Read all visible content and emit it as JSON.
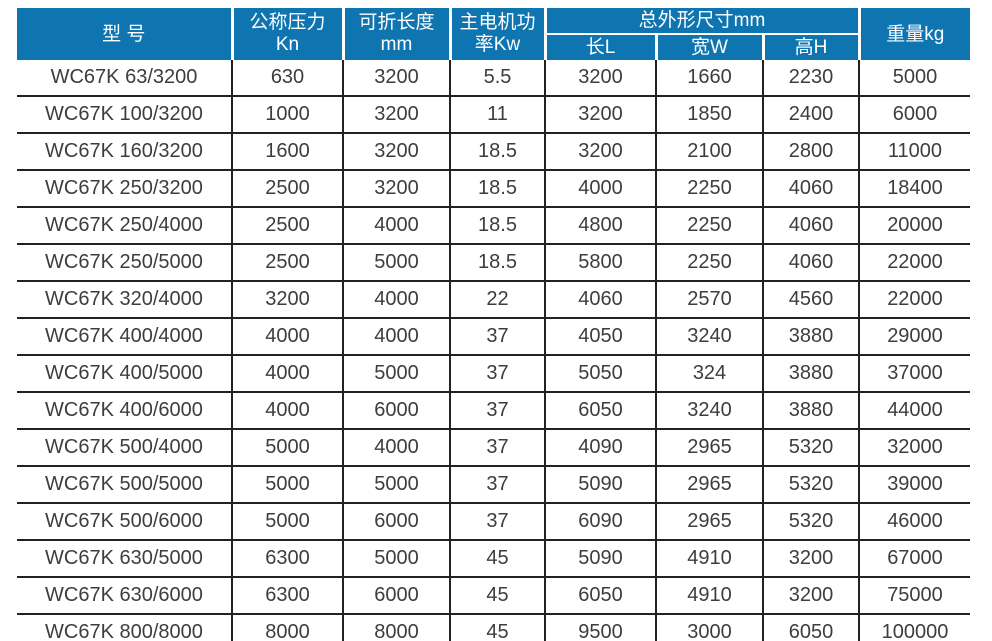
{
  "table": {
    "title": "WC67K series press brake specification table",
    "headers": {
      "model": "型 号",
      "pressure_line1": "公称压力",
      "pressure_line2": "Kn",
      "fold_length_line1": "可折长度",
      "fold_length_line2": "mm",
      "motor_power_line1": "主电机功",
      "motor_power_line2": "率Kw",
      "overall_dimensions": "总外形尺寸mm",
      "dim_length": "长L",
      "dim_width": "宽W",
      "dim_height": "高H",
      "weight": "重量kg"
    },
    "rows": [
      [
        "WC67K 63/3200",
        "630",
        "3200",
        "5.5",
        "3200",
        "1660",
        "2230",
        "5000"
      ],
      [
        "WC67K 100/3200",
        "1000",
        "3200",
        "11",
        "3200",
        "1850",
        "2400",
        "6000"
      ],
      [
        "WC67K 160/3200",
        "1600",
        "3200",
        "18.5",
        "3200",
        "2100",
        "2800",
        "11000"
      ],
      [
        "WC67K 250/3200",
        "2500",
        "3200",
        "18.5",
        "4000",
        "2250",
        "4060",
        "18400"
      ],
      [
        "WC67K 250/4000",
        "2500",
        "4000",
        "18.5",
        "4800",
        "2250",
        "4060",
        "20000"
      ],
      [
        "WC67K 250/5000",
        "2500",
        "5000",
        "18.5",
        "5800",
        "2250",
        "4060",
        "22000"
      ],
      [
        "WC67K 320/4000",
        "3200",
        "4000",
        "22",
        "4060",
        "2570",
        "4560",
        "22000"
      ],
      [
        "WC67K 400/4000",
        "4000",
        "4000",
        "37",
        "4050",
        "3240",
        "3880",
        "29000"
      ],
      [
        "WC67K 400/5000",
        "4000",
        "5000",
        "37",
        "5050",
        "324",
        "3880",
        "37000"
      ],
      [
        "WC67K 400/6000",
        "4000",
        "6000",
        "37",
        "6050",
        "3240",
        "3880",
        "44000"
      ],
      [
        "WC67K 500/4000",
        "5000",
        "4000",
        "37",
        "4090",
        "2965",
        "5320",
        "32000"
      ],
      [
        "WC67K 500/5000",
        "5000",
        "5000",
        "37",
        "5090",
        "2965",
        "5320",
        "39000"
      ],
      [
        "WC67K 500/6000",
        "5000",
        "6000",
        "37",
        "6090",
        "2965",
        "5320",
        "46000"
      ],
      [
        "WC67K 630/5000",
        "6300",
        "5000",
        "45",
        "5090",
        "4910",
        "3200",
        "67000"
      ],
      [
        "WC67K 630/6000",
        "6300",
        "6000",
        "45",
        "6050",
        "4910",
        "3200",
        "75000"
      ],
      [
        "WC67K 800/8000",
        "8000",
        "8000",
        "45",
        "9500",
        "3000",
        "6050",
        "100000"
      ]
    ]
  },
  "colors": {
    "header_bg": "#0e75b1",
    "header_text": "#ffffff",
    "body_text": "#3d3d3d",
    "grid_line": "#222222"
  }
}
